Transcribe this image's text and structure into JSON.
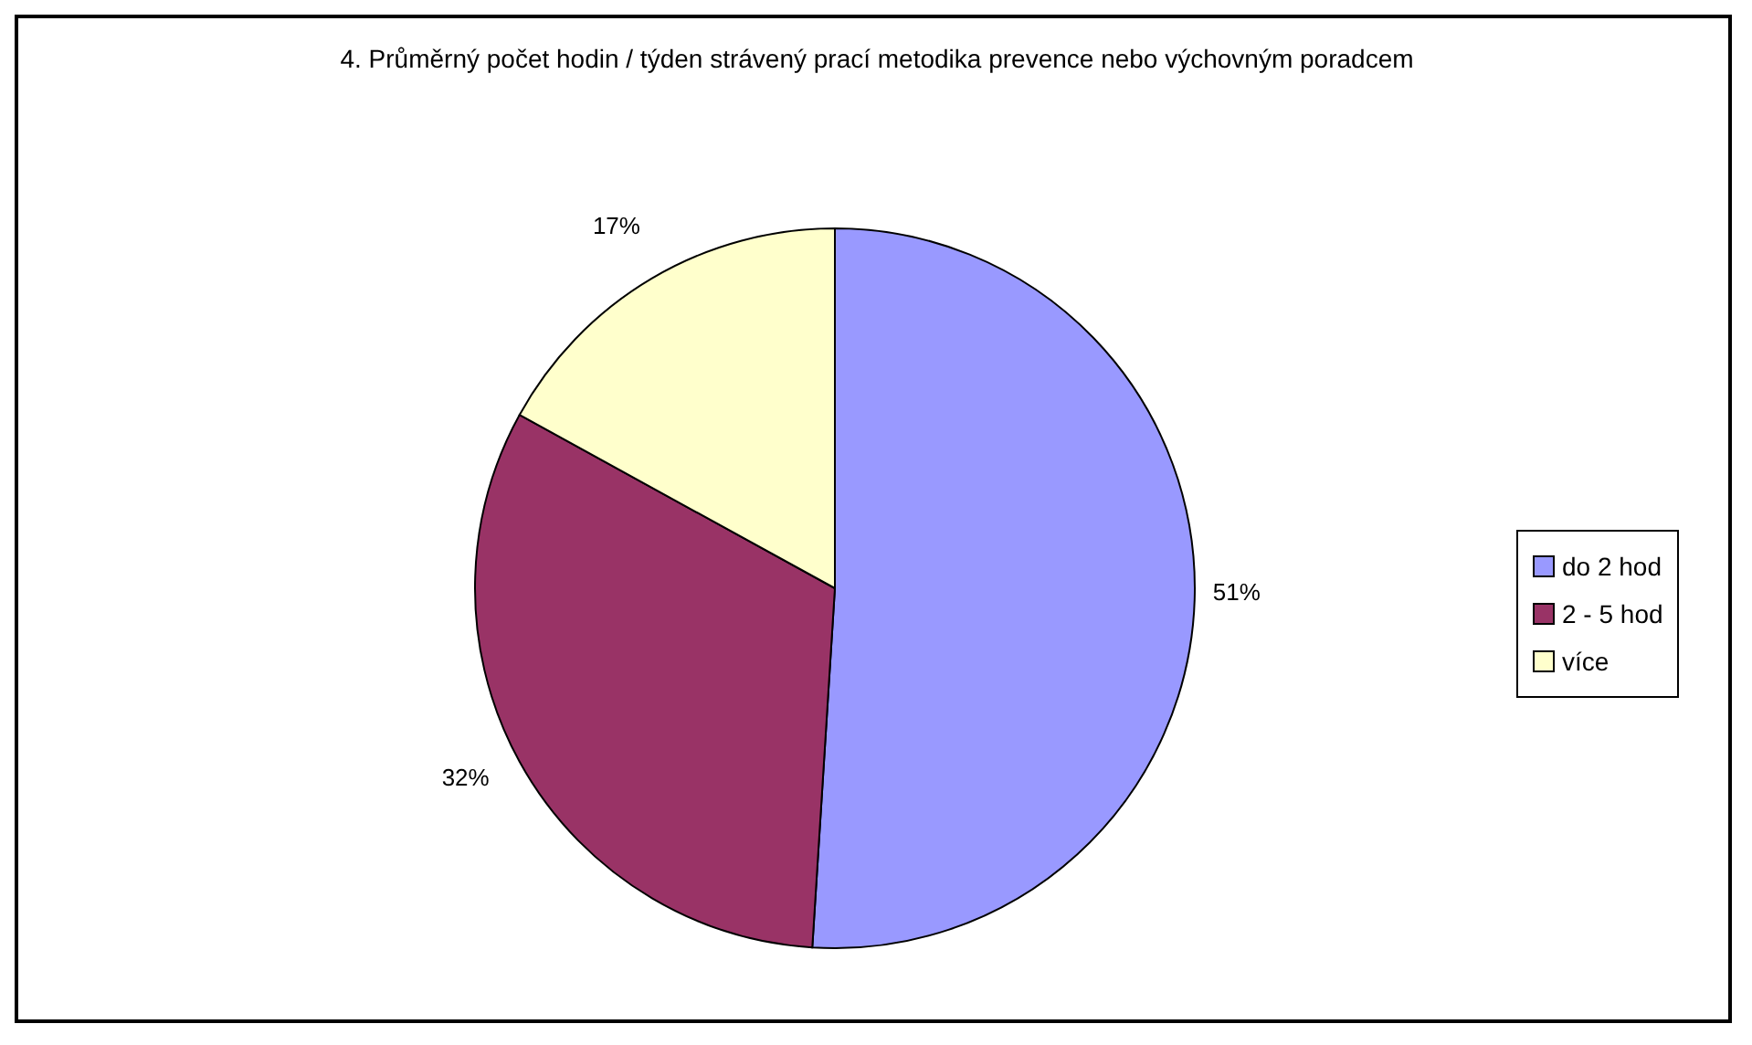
{
  "chart_data": {
    "type": "pie",
    "title": "4. Průměrný počet hodin / týden strávený prací metodika prevence nebo výchovným poradcem",
    "categories": [
      "do 2 hod",
      "2 - 5 hod",
      "více"
    ],
    "values": [
      51,
      32,
      17
    ],
    "colors": [
      "#9999ff",
      "#993366",
      "#ffffcc"
    ],
    "value_labels": [
      "51%",
      "32%",
      "17%"
    ],
    "legend": "right"
  }
}
